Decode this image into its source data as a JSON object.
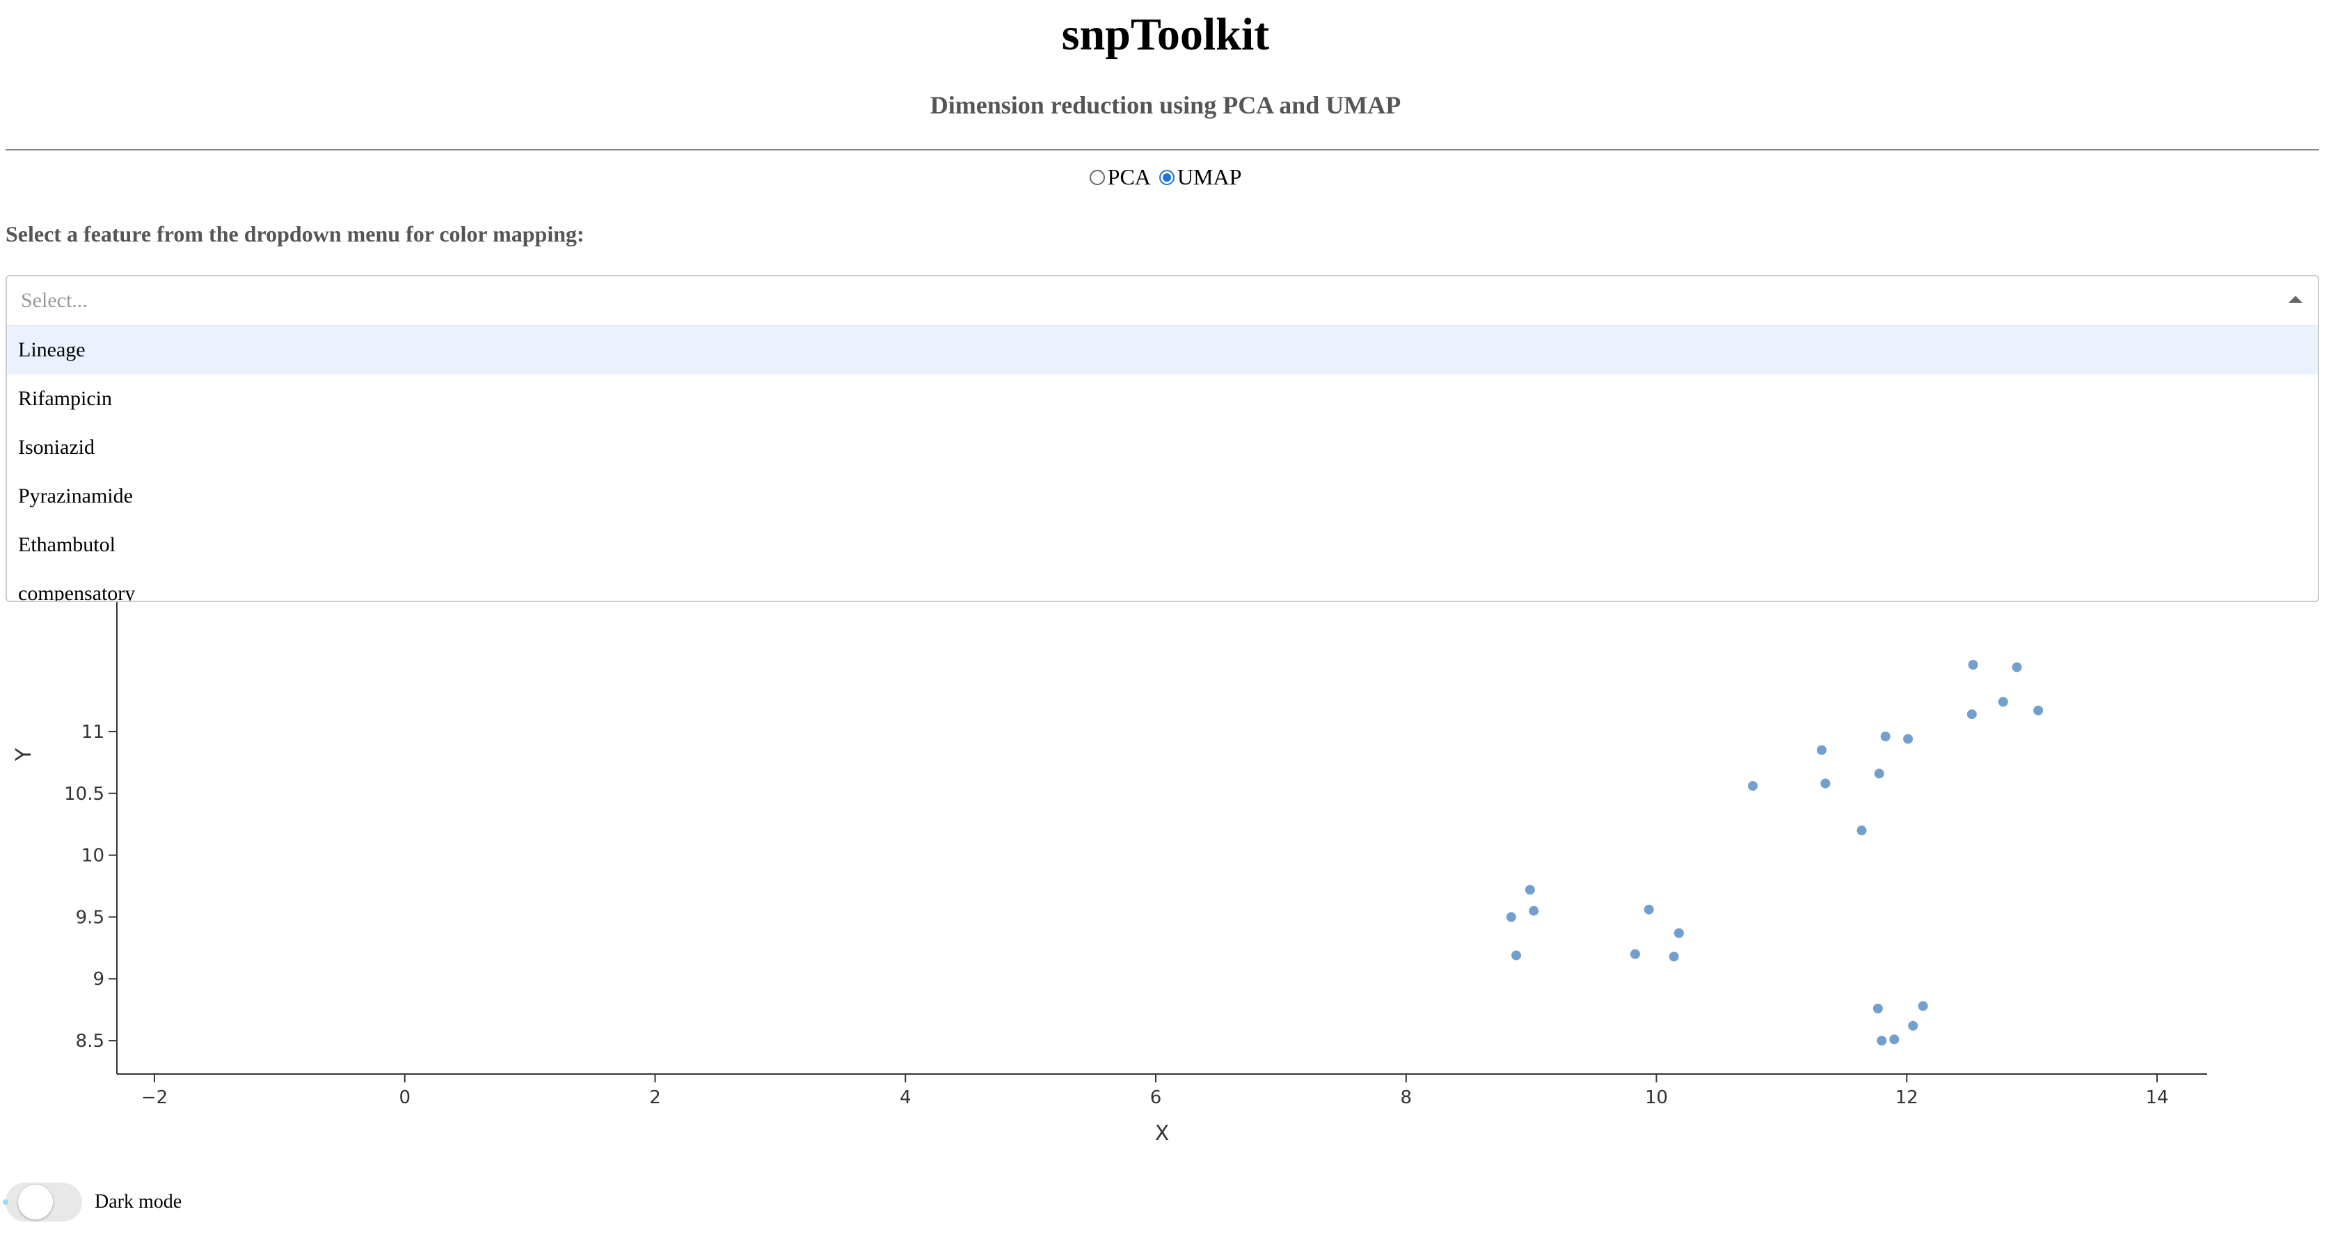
{
  "header": {
    "title": "snpToolkit",
    "subtitle": "Dimension reduction using PCA and UMAP"
  },
  "method_selector": {
    "options": [
      {
        "label": "PCA",
        "checked": false
      },
      {
        "label": "UMAP",
        "checked": true
      }
    ]
  },
  "feature_select": {
    "label": "Select a feature from the dropdown menu for color mapping:",
    "placeholder": "Select...",
    "options": [
      "Lineage",
      "Rifampicin",
      "Isoniazid",
      "Pyrazinamide",
      "Ethambutol",
      "compensatory"
    ],
    "highlighted_index": 0
  },
  "dark_mode": {
    "label": "Dark mode",
    "enabled": false
  },
  "colors": {
    "marker": "#5b8ec4",
    "highlight": "#ebf2fd",
    "radio_selected": "#1a73e8"
  },
  "chart_data": {
    "type": "scatter",
    "xlabel": "X",
    "ylabel": "Y",
    "xlim": [
      -2.3,
      14.4
    ],
    "ylim": [
      8.23,
      12.3
    ],
    "x_ticks": [
      -2,
      0,
      2,
      4,
      6,
      8,
      10,
      12,
      14
    ],
    "x_tick_labels": [
      "−2",
      "0",
      "2",
      "4",
      "6",
      "8",
      "10",
      "12",
      "14"
    ],
    "y_ticks": [
      8.5,
      9,
      9.5,
      10,
      10.5,
      11
    ],
    "y_tick_labels": [
      "8.5",
      "9",
      "9.5",
      "10",
      "10.5",
      "11"
    ],
    "grid": false,
    "points": [
      {
        "x": 8.84,
        "y": 9.5
      },
      {
        "x": 8.88,
        "y": 9.19
      },
      {
        "x": 8.99,
        "y": 9.72
      },
      {
        "x": 9.02,
        "y": 9.55
      },
      {
        "x": 9.83,
        "y": 9.2
      },
      {
        "x": 9.94,
        "y": 9.56
      },
      {
        "x": 10.14,
        "y": 9.18
      },
      {
        "x": 10.18,
        "y": 9.37
      },
      {
        "x": 10.77,
        "y": 10.56
      },
      {
        "x": 11.32,
        "y": 10.85
      },
      {
        "x": 11.35,
        "y": 10.58
      },
      {
        "x": 11.64,
        "y": 10.2
      },
      {
        "x": 11.78,
        "y": 10.66
      },
      {
        "x": 11.83,
        "y": 10.96
      },
      {
        "x": 12.01,
        "y": 10.94
      },
      {
        "x": 11.77,
        "y": 8.76
      },
      {
        "x": 11.8,
        "y": 8.5
      },
      {
        "x": 11.9,
        "y": 8.51
      },
      {
        "x": 12.05,
        "y": 8.62
      },
      {
        "x": 12.13,
        "y": 8.78
      },
      {
        "x": 12.52,
        "y": 11.14
      },
      {
        "x": 12.77,
        "y": 11.24
      },
      {
        "x": 13.05,
        "y": 11.17
      },
      {
        "x": 12.53,
        "y": 11.54
      },
      {
        "x": 12.88,
        "y": 11.52
      }
    ]
  }
}
